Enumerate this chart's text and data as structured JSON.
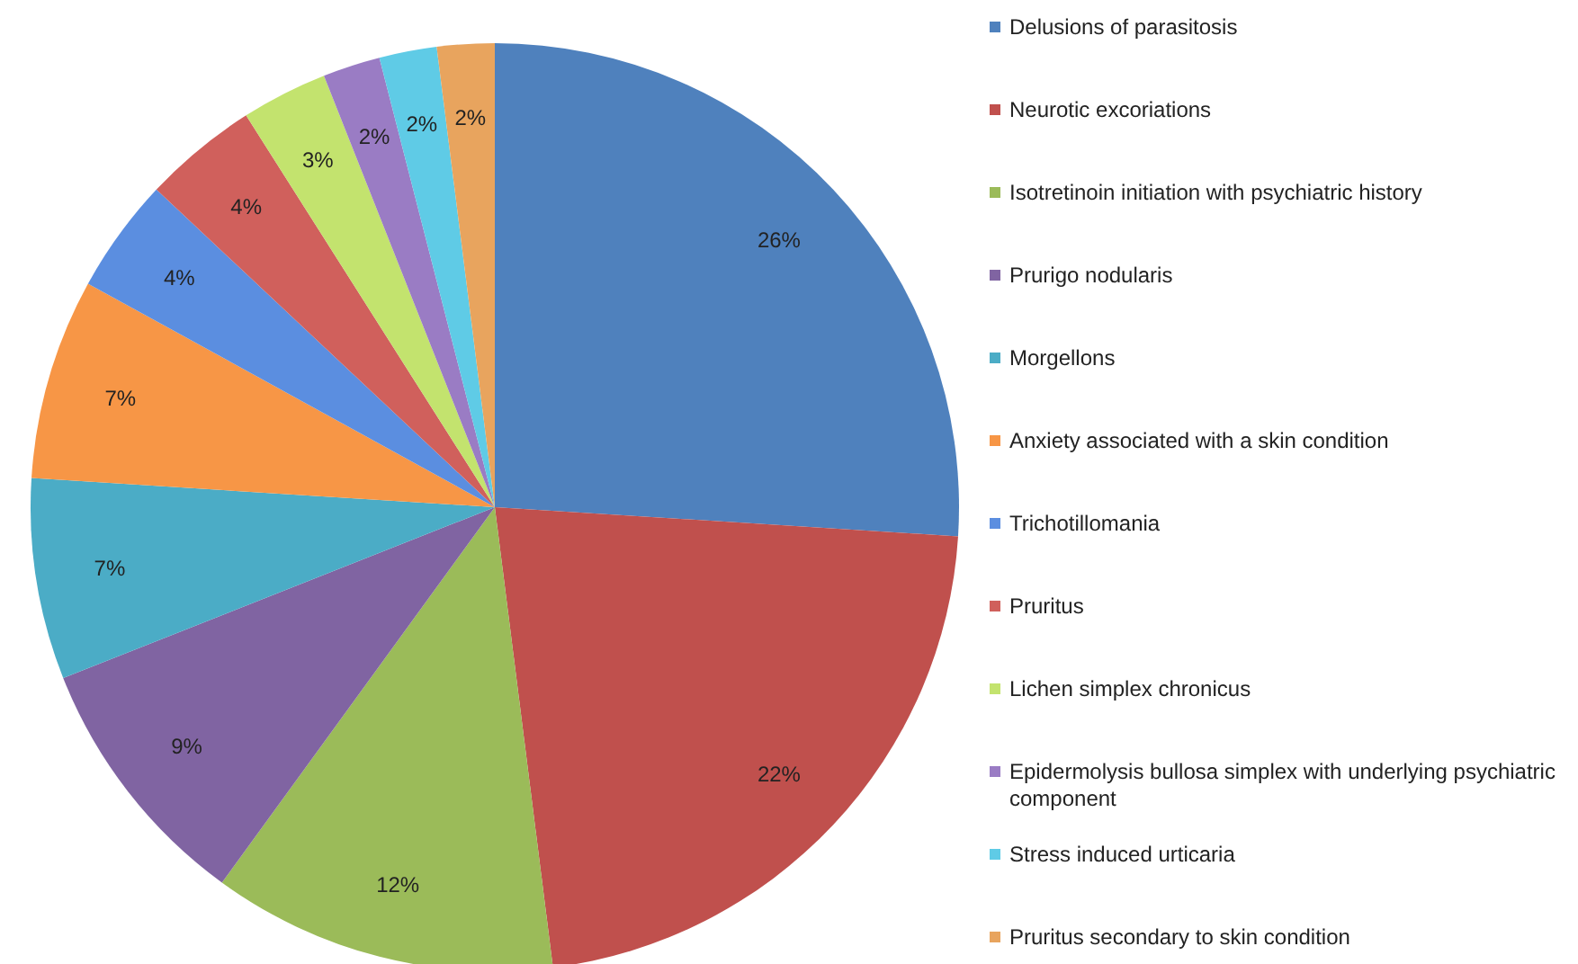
{
  "chart_data": {
    "type": "pie",
    "categories": [
      "Delusions of parasitosis",
      "Neurotic excoriations",
      "Isotretinoin initiation with psychiatric history",
      "Prurigo nodularis",
      "Morgellons",
      "Anxiety associated with a skin condition",
      "Trichotillomania",
      "Pruritus",
      "Lichen simplex chronicus",
      "Epidermolysis bullosa simplex with underlying psychiatric component",
      "Stress induced urticaria",
      "Pruritus secondary to skin condition"
    ],
    "values": [
      26,
      22,
      12,
      9,
      7,
      7,
      4,
      4,
      3,
      2,
      2,
      2
    ],
    "value_labels": [
      "26%",
      "22%",
      "12%",
      "9%",
      "7%",
      "7%",
      "4%",
      "4%",
      "3%",
      "2%",
      "2%",
      "2%"
    ],
    "colors": [
      "#4f81bd",
      "#c0504d",
      "#9bbb59",
      "#8064a2",
      "#4bacc6",
      "#f79646",
      "#5b8ee0",
      "#d0605c",
      "#c3e36e",
      "#9a7cc4",
      "#5fcbe6",
      "#e8a45e"
    ],
    "legend": "right"
  }
}
